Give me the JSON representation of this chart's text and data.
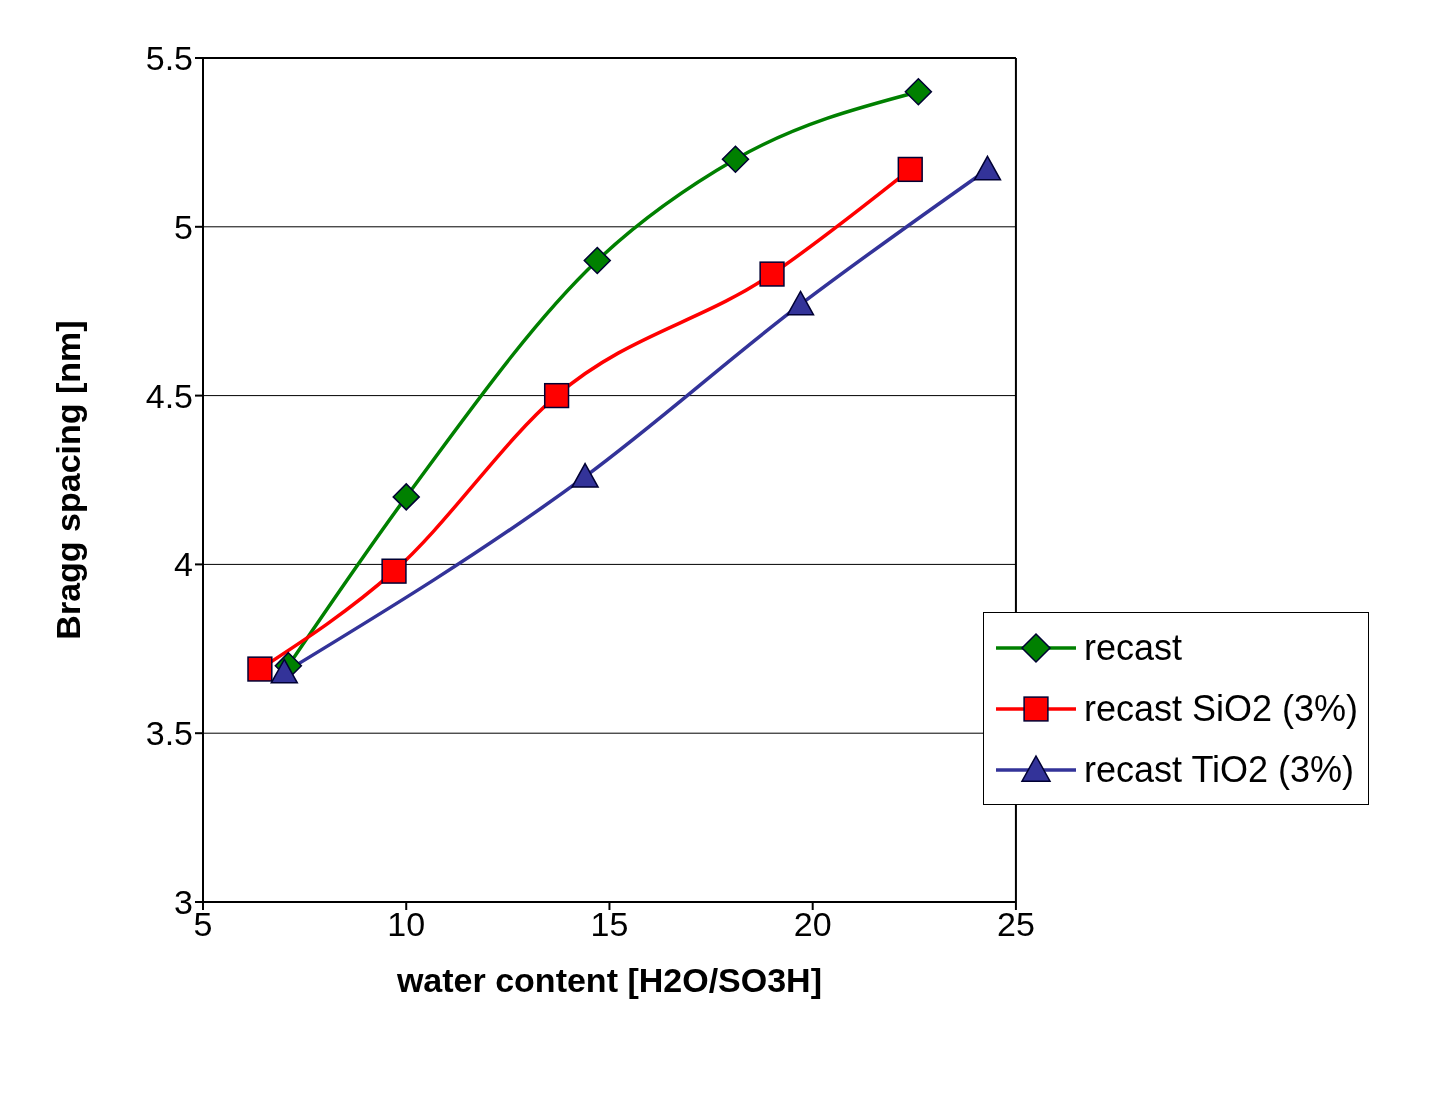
{
  "chart_data": {
    "type": "line",
    "xlabel": "water content [H2O/SO3H]",
    "ylabel": "Bragg spacing [nm]",
    "xlim": [
      5,
      25
    ],
    "xticks": [
      5,
      10,
      15,
      20,
      25
    ],
    "ylim": [
      3,
      5.5
    ],
    "yticks": [
      3,
      3.5,
      4,
      4.5,
      5,
      5.5
    ],
    "grid": "y",
    "legend": "right",
    "series": [
      {
        "name": "recast",
        "color": "#008000",
        "marker": "diamond",
        "x": [
          7.1,
          10.0,
          14.7,
          18.1,
          22.6
        ],
        "values": [
          3.7,
          4.2,
          4.9,
          5.2,
          5.4
        ]
      },
      {
        "name": "recast SiO2 (3%)",
        "color": "#ff0000",
        "marker": "square",
        "x": [
          6.4,
          9.7,
          13.7,
          19.0,
          22.4
        ],
        "values": [
          3.69,
          3.98,
          4.5,
          4.86,
          5.17
        ]
      },
      {
        "name": "recast TiO2 (3%)",
        "color": "#333399",
        "marker": "triangle",
        "x": [
          7.0,
          14.4,
          19.7,
          24.3
        ],
        "values": [
          3.68,
          4.26,
          4.77,
          5.17
        ]
      }
    ]
  }
}
